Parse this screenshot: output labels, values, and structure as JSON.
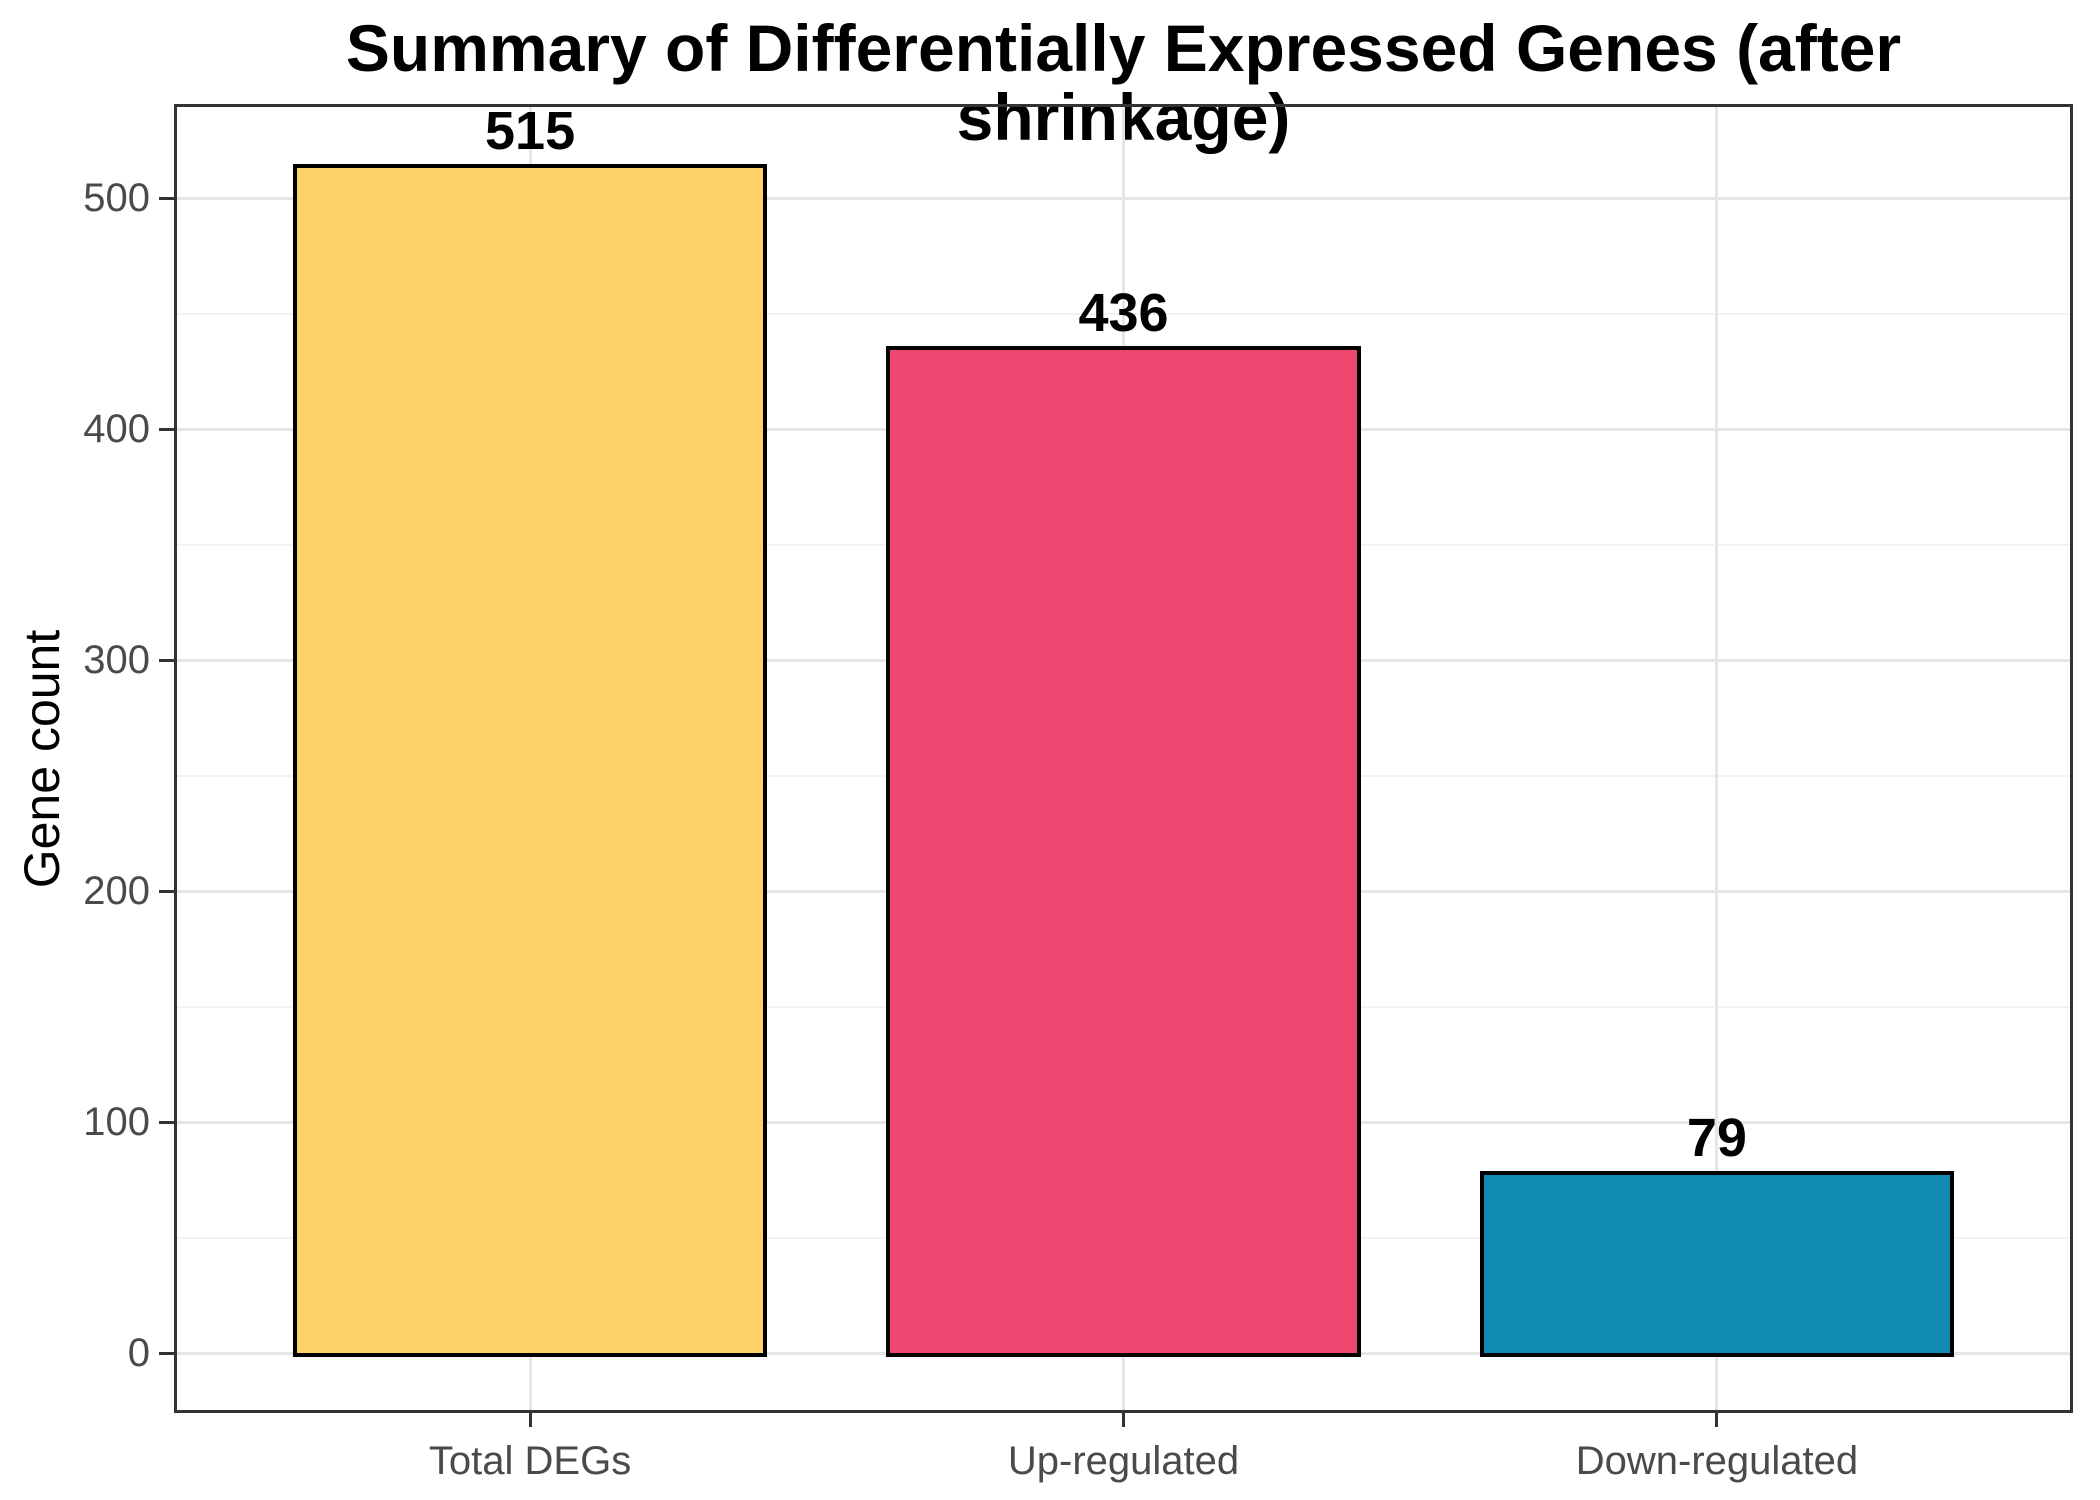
{
  "chart_data": {
    "type": "bar",
    "title": "Summary of Differentially Expressed Genes (after shrinkage)",
    "xlabel": "",
    "ylabel": "Gene count",
    "categories": [
      "Total DEGs",
      "Up-regulated",
      "Down-regulated"
    ],
    "values": [
      515,
      436,
      79
    ],
    "bar_labels": [
      "515",
      "436",
      "79"
    ],
    "bar_colors": [
      "#FDD167",
      "#EF476F",
      "#118AB2"
    ],
    "bar_edge_color": "#000000",
    "yticks": [
      0,
      100,
      200,
      300,
      400,
      500
    ],
    "yminor_ticks": [
      50,
      150,
      250,
      350,
      450
    ],
    "ylim": [
      -25.8,
      540.8
    ],
    "xlim": [
      0.4,
      3.6
    ],
    "bar_width_units": 0.8,
    "grid": "on",
    "legend": "none",
    "style": {
      "background_color": "#FFFFFF",
      "panel_border_color": "#333333",
      "grid_major_color": "#E6E6E6",
      "grid_minor_color": "#F2F2F2",
      "axis_tick_color": "#333333",
      "tick_label_color": "#4A4A4A",
      "title_color": "#000000",
      "axis_title_color": "#000000",
      "bar_label_color": "#000000"
    }
  }
}
